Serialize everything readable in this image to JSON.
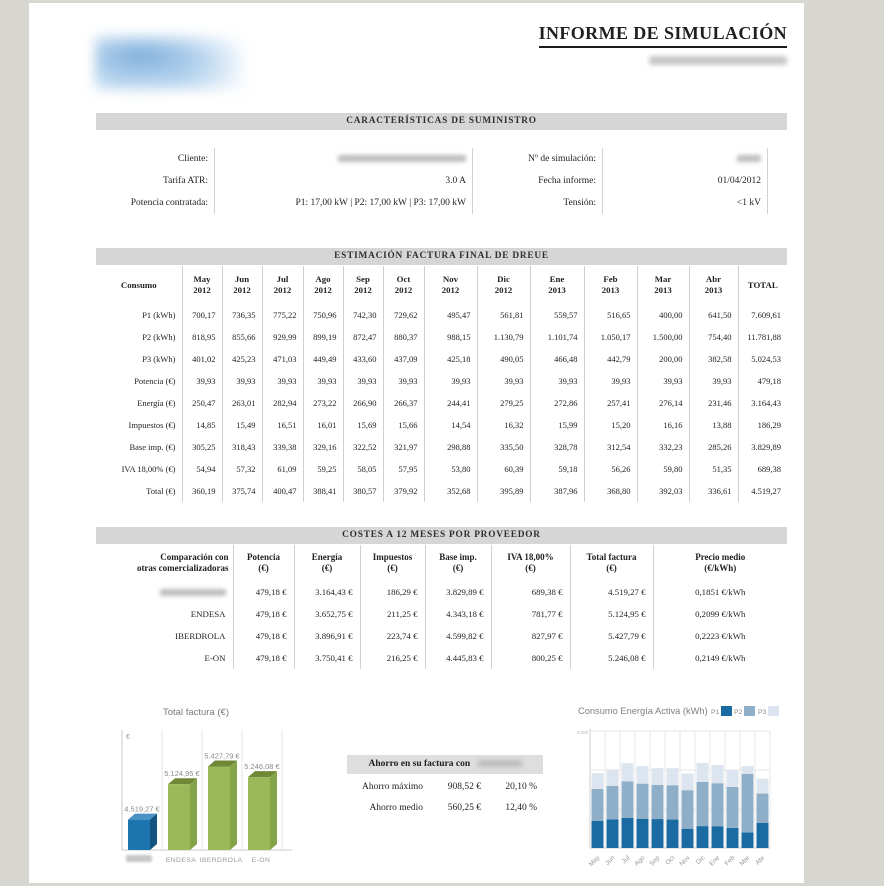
{
  "header": {
    "title": "INFORME DE SIMULACIÓN",
    "subtitle_redacted": true,
    "logo_redacted": true
  },
  "supply": {
    "section_title": "CARACTERÍSTICAS DE SUMINISTRO",
    "rows": [
      {
        "left_label": "Cliente:",
        "left_value": "",
        "left_redacted": true,
        "right_label": "Nº de simulación:",
        "right_value": "",
        "right_redacted": true
      },
      {
        "left_label": "Tarifa ATR:",
        "left_value": "3.0 A",
        "right_label": "Fecha informe:",
        "right_value": "01/04/2012"
      },
      {
        "left_label": "Potencia contratada:",
        "left_value": "P1: 17,00 kW | P2: 17,00 kW | P3: 17,00 kW",
        "right_label": "Tensión:",
        "right_value": "<1 kV"
      }
    ]
  },
  "estimation": {
    "section_title": "ESTIMACIÓN FACTURA FINAL DE DREUE",
    "col_header_first": "Consumo",
    "col_header_last": "TOTAL",
    "months": [
      [
        "May",
        "2012"
      ],
      [
        "Jun",
        "2012"
      ],
      [
        "Jul",
        "2012"
      ],
      [
        "Ago",
        "2012"
      ],
      [
        "Sep",
        "2012"
      ],
      [
        "Oct",
        "2012"
      ],
      [
        "Nov",
        "2012"
      ],
      [
        "Dic",
        "2012"
      ],
      [
        "Ene",
        "2013"
      ],
      [
        "Feb",
        "2013"
      ],
      [
        "Mar",
        "2013"
      ],
      [
        "Abr",
        "2013"
      ]
    ],
    "rows": [
      {
        "label": "P1 (kWh)",
        "values": [
          "700,17",
          "736,35",
          "775,22",
          "750,96",
          "742,30",
          "729,62",
          "495,47",
          "561,81",
          "559,57",
          "516,65",
          "400,00",
          "641,50"
        ],
        "total": "7.609,61"
      },
      {
        "label": "P2 (kWh)",
        "values": [
          "818,95",
          "855,66",
          "929,99",
          "899,19",
          "872,47",
          "880,37",
          "988,15",
          "1.130,79",
          "1.101,74",
          "1.050,17",
          "1.500,00",
          "754,40"
        ],
        "total": "11.781,88"
      },
      {
        "label": "P3 (kWh)",
        "values": [
          "401,02",
          "425,23",
          "471,03",
          "449,49",
          "433,60",
          "437,09",
          "425,18",
          "490,05",
          "466,48",
          "442,79",
          "200,00",
          "382,58"
        ],
        "total": "5.024,53"
      },
      {
        "label": "Potencia (€)",
        "values": [
          "39,93",
          "39,93",
          "39,93",
          "39,93",
          "39,93",
          "39,93",
          "39,93",
          "39,93",
          "39,93",
          "39,93",
          "39,93",
          "39,93"
        ],
        "total": "479,18"
      },
      {
        "label": "Energía (€)",
        "values": [
          "250,47",
          "263,01",
          "282,94",
          "273,22",
          "266,90",
          "266,37",
          "244,41",
          "279,25",
          "272,86",
          "257,41",
          "276,14",
          "231,46"
        ],
        "total": "3.164,43"
      },
      {
        "label": "Impuestos (€)",
        "values": [
          "14,85",
          "15,49",
          "16,51",
          "16,01",
          "15,69",
          "15,66",
          "14,54",
          "16,32",
          "15,99",
          "15,20",
          "16,16",
          "13,88"
        ],
        "total": "186,29"
      },
      {
        "label": "Base imp. (€)",
        "values": [
          "305,25",
          "318,43",
          "339,38",
          "329,16",
          "322,52",
          "321,97",
          "298,88",
          "335,50",
          "328,78",
          "312,54",
          "332,23",
          "285,26"
        ],
        "total": "3.829,89"
      },
      {
        "label": "IVA 18,00% (€)",
        "values": [
          "54,94",
          "57,32",
          "61,09",
          "59,25",
          "58,05",
          "57,95",
          "53,80",
          "60,39",
          "59,18",
          "56,26",
          "59,80",
          "51,35"
        ],
        "total": "689,38"
      },
      {
        "label": "Total (€)",
        "values": [
          "360,19",
          "375,74",
          "400,47",
          "388,41",
          "380,57",
          "379,92",
          "352,68",
          "395,89",
          "387,96",
          "368,80",
          "392,03",
          "336,61"
        ],
        "total": "4.519,27"
      }
    ]
  },
  "providers": {
    "section_title": "COSTES A 12 MESES POR PROVEEDOR",
    "headers": [
      [
        "Comparación con",
        "otras comercializadoras"
      ],
      [
        "Potencia",
        "(€)"
      ],
      [
        "Energía",
        "(€)"
      ],
      [
        "Impuestos",
        "(€)"
      ],
      [
        "Base imp.",
        "(€)"
      ],
      [
        "IVA 18,00%",
        "(€)"
      ],
      [
        "Total factura",
        "(€)"
      ],
      [
        "Precio medio",
        "(€/kWh)"
      ]
    ],
    "rows": [
      {
        "name": "",
        "redacted": true,
        "values": [
          "479,18 €",
          "3.164,43 €",
          "186,29 €",
          "3.829,89 €",
          "689,38 €",
          "4.519,27 €",
          "0,1851 €/kWh"
        ]
      },
      {
        "name": "ENDESA",
        "values": [
          "479,18 €",
          "3.652,75 €",
          "211,25 €",
          "4.343,18 €",
          "781,77 €",
          "5.124,95 €",
          "0,2099 €/kWh"
        ]
      },
      {
        "name": "IBERDROLA",
        "values": [
          "479,18 €",
          "3.896,91 €",
          "223,74 €",
          "4.599,82 €",
          "827,97 €",
          "5.427,79 €",
          "0,2223 €/kWh"
        ]
      },
      {
        "name": "E-ON",
        "values": [
          "479,18 €",
          "3.750,41 €",
          "216,25 €",
          "4.445,83 €",
          "800,25 €",
          "5.246,08 €",
          "0,2149 €/kWh"
        ]
      }
    ]
  },
  "savings": {
    "header_prefix": "Ahorro en su factura con",
    "header_suffix_redacted": true,
    "rows": [
      {
        "label": "Ahorro máximo",
        "amount": "908,52 €",
        "percent": "20,10 %"
      },
      {
        "label": "Ahorro medio",
        "amount": "560,25 €",
        "percent": "12,40 %"
      }
    ]
  },
  "chart_data": [
    {
      "type": "bar",
      "style": "3d",
      "title": "Total factura (€)",
      "ylabel": "€",
      "ylim": [
        4000,
        6000
      ],
      "categories": [
        "",
        "ENDESA",
        "IBERDROLA",
        "E-ON"
      ],
      "first_category_redacted": true,
      "values": [
        4519.27,
        5124.95,
        5427.79,
        5246.08
      ],
      "value_labels": [
        "4.519,27 €",
        "5.124,95 €",
        "5.427,79 €",
        "5.246,08 €"
      ],
      "colors": [
        {
          "front": "#1c75ae",
          "top": "#4a92c3",
          "side": "#14537d"
        },
        {
          "front": "#9aba5a",
          "top": "#6f8737",
          "side": "#85a44a"
        },
        {
          "front": "#9aba5a",
          "top": "#6f8737",
          "side": "#85a44a"
        },
        {
          "front": "#9aba5a",
          "top": "#6f8737",
          "side": "#85a44a"
        }
      ],
      "grid": true
    },
    {
      "type": "bar",
      "stacked": true,
      "title": "Consumo Energía Activa (kWh)",
      "ylim": [
        0,
        3000
      ],
      "ytick_top_label": "3.000",
      "legend_position": "top-right",
      "grid": true,
      "categories": [
        "May",
        "Jun",
        "Jul",
        "Ago",
        "Sep",
        "Oct",
        "Nov",
        "Dic",
        "Ene",
        "Feb",
        "Mar",
        "Abr"
      ],
      "series": [
        {
          "name": "P1",
          "color": "#1b6ba3",
          "values": [
            700.17,
            736.35,
            775.22,
            750.96,
            742.3,
            729.62,
            495.47,
            561.81,
            559.57,
            516.65,
            400.0,
            641.5
          ]
        },
        {
          "name": "P2",
          "color": "#8fafc9",
          "values": [
            818.95,
            855.66,
            929.99,
            899.19,
            872.47,
            880.37,
            988.15,
            1130.79,
            1101.74,
            1050.17,
            1500.0,
            754.4
          ]
        },
        {
          "name": "P3",
          "color": "#dce5ef",
          "values": [
            401.02,
            425.23,
            471.03,
            449.49,
            433.6,
            437.09,
            425.18,
            490.05,
            466.48,
            442.79,
            200.0,
            382.58
          ]
        }
      ]
    }
  ]
}
